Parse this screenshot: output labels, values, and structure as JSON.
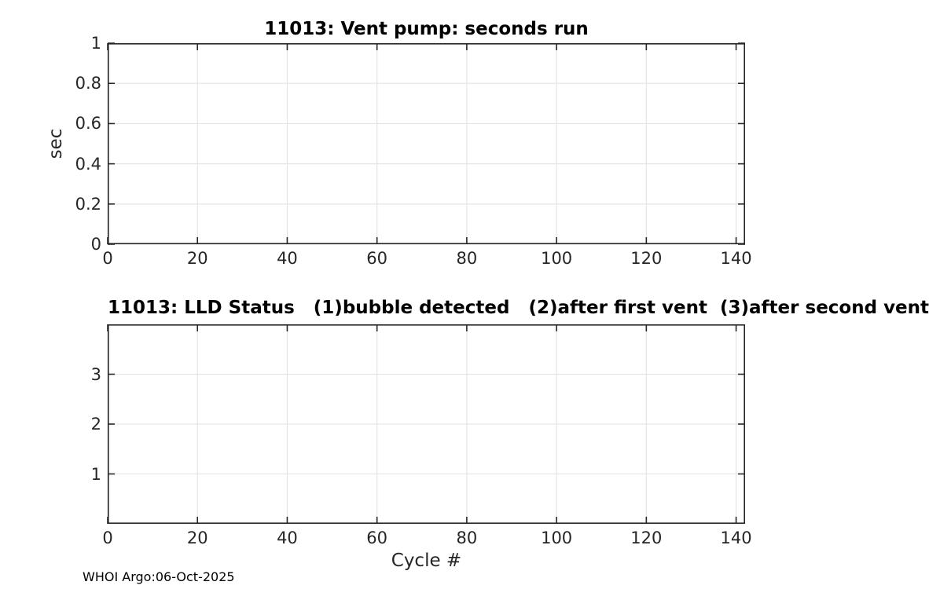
{
  "figure": {
    "background": "#ffffff",
    "footer": "WHOI Argo:06-Oct-2025"
  },
  "colors": {
    "axis": "#262626",
    "grid": "#e3e3e3",
    "title": "#000000",
    "text": "#262626"
  },
  "chart_data": [
    {
      "type": "line",
      "title": "11013: Vent pump: seconds run",
      "xlabel": "",
      "ylabel": "sec",
      "xlim": [
        0,
        142
      ],
      "ylim": [
        0,
        1
      ],
      "xticks": [
        0,
        20,
        40,
        60,
        80,
        100,
        120,
        140
      ],
      "xtick_labels": [
        "0",
        "20",
        "40",
        "60",
        "80",
        "100",
        "120",
        "140"
      ],
      "yticks": [
        0,
        0.2,
        0.4,
        0.6,
        0.8,
        1
      ],
      "ytick_labels": [
        "0",
        "0.2",
        "0.4",
        "0.6",
        "0.8",
        "1"
      ],
      "grid": true,
      "box": true,
      "legend": null,
      "series": []
    },
    {
      "type": "line",
      "title": "11013: LLD Status   (1)bubble detected   (2)after first vent  (3)after second vent",
      "xlabel": "Cycle #",
      "ylabel": "",
      "xlim": [
        0,
        142
      ],
      "ylim": [
        0,
        4
      ],
      "xticks": [
        0,
        20,
        40,
        60,
        80,
        100,
        120,
        140
      ],
      "xtick_labels": [
        "0",
        "20",
        "40",
        "60",
        "80",
        "100",
        "120",
        "140"
      ],
      "yticks": [
        1,
        2,
        3
      ],
      "ytick_labels": [
        "1",
        "2",
        "3"
      ],
      "grid": true,
      "box": true,
      "legend": null,
      "series": []
    }
  ]
}
